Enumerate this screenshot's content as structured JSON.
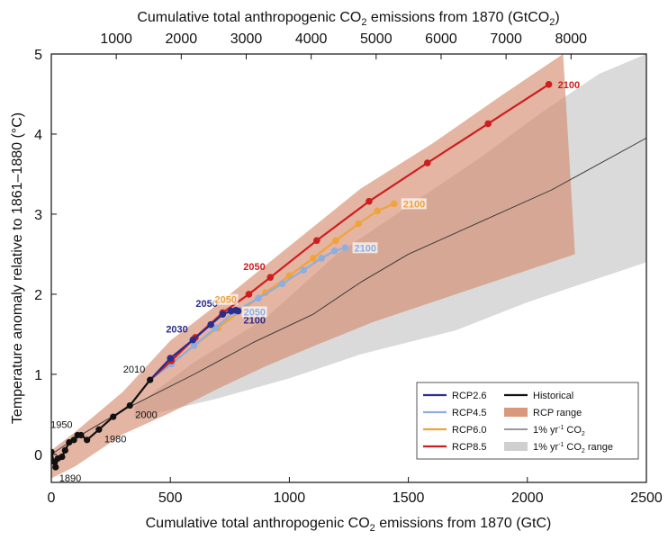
{
  "chart_data": {
    "type": "line",
    "title": "",
    "xlabel_parts": [
      "Cumulative total anthropogenic CO",
      "2",
      " emissions from 1870 (GtC)"
    ],
    "x2label_parts": [
      "Cumulative total anthropogenic CO",
      "2",
      " emissions from 1870 (GtCO",
      "2",
      ")"
    ],
    "ylabel": "Temperature anomaly relative to 1861–1880 (°C)",
    "xlim": [
      0,
      2500
    ],
    "ylim": [
      -0.35,
      5
    ],
    "xticks": [
      "0",
      "500",
      "1000",
      "1500",
      "2000",
      "2500"
    ],
    "x2ticks": [
      "1000",
      "2000",
      "3000",
      "4000",
      "5000",
      "6000",
      "7000",
      "8000"
    ],
    "yticks": [
      "0",
      "1",
      "2",
      "3",
      "4",
      "5"
    ],
    "grid": false,
    "legend_position": "bottom-right",
    "legend": {
      "col1": [
        {
          "label": "RCP2.6",
          "color": "#2b2c8c"
        },
        {
          "label": "RCP4.5",
          "color": "#8eaee0"
        },
        {
          "label": "RCP6.0",
          "color": "#f0a33a"
        },
        {
          "label": "RCP8.5",
          "color": "#cc1f1f"
        }
      ],
      "col2": [
        {
          "label": "Historical",
          "color": "#111111",
          "kind": "line"
        },
        {
          "label": "RCP range",
          "color": "#d9977c",
          "kind": "patch"
        },
        {
          "label_parts": [
            "1% yr",
            "-1",
            " CO",
            "2"
          ],
          "color": "#333333",
          "kind": "thinline"
        },
        {
          "label_parts": [
            "1% yr",
            "-1",
            " CO",
            "2",
            " range"
          ],
          "color": "#cfcfcf",
          "kind": "patch"
        }
      ]
    },
    "series": [
      {
        "name": "Historical",
        "color": "#111111",
        "points": [
          [
            0,
            0.03
          ],
          [
            10,
            -0.09
          ],
          [
            18,
            -0.16
          ],
          [
            28,
            -0.05
          ],
          [
            45,
            -0.03
          ],
          [
            58,
            0.05
          ],
          [
            75,
            0.15
          ],
          [
            95,
            0.18
          ],
          [
            110,
            0.24
          ],
          [
            125,
            0.24
          ],
          [
            150,
            0.18
          ],
          [
            200,
            0.31
          ],
          [
            260,
            0.47
          ],
          [
            330,
            0.61
          ],
          [
            415,
            0.93
          ]
        ]
      },
      {
        "name": "RCP2.6",
        "color": "#2b2c8c",
        "points": [
          [
            415,
            0.93
          ],
          [
            500,
            1.2
          ],
          [
            595,
            1.43
          ],
          [
            670,
            1.62
          ],
          [
            720,
            1.75
          ],
          [
            755,
            1.79
          ],
          [
            775,
            1.8
          ],
          [
            785,
            1.79
          ]
        ]
      },
      {
        "name": "RCP4.5",
        "color": "#8eaee0",
        "points": [
          [
            415,
            0.93
          ],
          [
            505,
            1.13
          ],
          [
            600,
            1.36
          ],
          [
            690,
            1.58
          ],
          [
            770,
            1.78
          ],
          [
            870,
            1.95
          ],
          [
            970,
            2.13
          ],
          [
            1060,
            2.3
          ],
          [
            1135,
            2.45
          ],
          [
            1190,
            2.54
          ],
          [
            1235,
            2.58
          ]
        ]
      },
      {
        "name": "RCP6.0",
        "color": "#f0a33a",
        "points": [
          [
            415,
            0.93
          ],
          [
            500,
            1.13
          ],
          [
            600,
            1.36
          ],
          [
            700,
            1.58
          ],
          [
            800,
            1.8
          ],
          [
            900,
            2.02
          ],
          [
            1000,
            2.23
          ],
          [
            1100,
            2.45
          ],
          [
            1195,
            2.67
          ],
          [
            1290,
            2.88
          ],
          [
            1370,
            3.04
          ],
          [
            1440,
            3.13
          ]
        ]
      },
      {
        "name": "RCP8.5",
        "color": "#cc1f1f",
        "points": [
          [
            415,
            0.93
          ],
          [
            505,
            1.17
          ],
          [
            605,
            1.46
          ],
          [
            720,
            1.77
          ],
          [
            830,
            2.0
          ],
          [
            920,
            2.21
          ],
          [
            1115,
            2.67
          ],
          [
            1335,
            3.16
          ],
          [
            1580,
            3.64
          ],
          [
            1835,
            4.13
          ],
          [
            2090,
            4.62
          ]
        ]
      },
      {
        "name": "1% yr-1 CO2",
        "color": "#333333",
        "points": [
          [
            0,
            0.0
          ],
          [
            100,
            0.2
          ],
          [
            300,
            0.55
          ],
          [
            600,
            1.0
          ],
          [
            850,
            1.4
          ],
          [
            1100,
            1.75
          ],
          [
            1300,
            2.15
          ],
          [
            1500,
            2.5
          ],
          [
            1800,
            2.9
          ],
          [
            2100,
            3.3
          ],
          [
            2500,
            3.95
          ]
        ]
      }
    ],
    "rcp_range": {
      "upper": [
        [
          0,
          0.05
        ],
        [
          100,
          0.28
        ],
        [
          300,
          0.78
        ],
        [
          500,
          1.42
        ],
        [
          700,
          1.88
        ],
        [
          1000,
          2.6
        ],
        [
          1300,
          3.32
        ],
        [
          1600,
          3.88
        ],
        [
          1900,
          4.5
        ],
        [
          2150,
          5.0
        ]
      ],
      "lower": [
        [
          0,
          -0.3
        ],
        [
          100,
          -0.15
        ],
        [
          300,
          0.25
        ],
        [
          500,
          0.52
        ],
        [
          700,
          0.82
        ],
        [
          900,
          1.1
        ],
        [
          1100,
          1.35
        ],
        [
          1350,
          1.65
        ],
        [
          1700,
          2.0
        ],
        [
          2000,
          2.3
        ],
        [
          2200,
          2.5
        ]
      ]
    },
    "co2_range": {
      "upper": [
        [
          350,
          0.6
        ],
        [
          600,
          1.15
        ],
        [
          900,
          1.7
        ],
        [
          1200,
          2.5
        ],
        [
          1500,
          3.1
        ],
        [
          1800,
          3.7
        ],
        [
          2050,
          4.25
        ],
        [
          2300,
          4.75
        ],
        [
          2500,
          5.0
        ]
      ],
      "lower": [
        [
          350,
          0.45
        ],
        [
          700,
          0.7
        ],
        [
          1000,
          0.95
        ],
        [
          1300,
          1.25
        ],
        [
          1700,
          1.55
        ],
        [
          2000,
          1.9
        ],
        [
          2300,
          2.2
        ],
        [
          2500,
          2.4
        ]
      ]
    },
    "year_labels": [
      {
        "text": "1890",
        "x": 18,
        "y": -0.16,
        "anchor": "bl",
        "color": "#111111"
      },
      {
        "text": "1950",
        "x": 110,
        "y": 0.24,
        "anchor": "tl",
        "color": "#111111"
      },
      {
        "text": "1980",
        "x": 200,
        "y": 0.31,
        "anchor": "br",
        "color": "#111111"
      },
      {
        "text": "2000",
        "x": 330,
        "y": 0.61,
        "anchor": "br",
        "color": "#111111"
      },
      {
        "text": "2010",
        "x": 415,
        "y": 0.93,
        "anchor": "tl",
        "color": "#111111"
      },
      {
        "text": "2030",
        "x": 595,
        "y": 1.43,
        "anchor": "tl",
        "color": "#2b2c8c"
      },
      {
        "text": "2050",
        "x": 720,
        "y": 1.75,
        "anchor": "tl",
        "color": "#2b2c8c"
      },
      {
        "text": "2100",
        "x": 785,
        "y": 1.79,
        "anchor": "br",
        "color": "#2b2c8c"
      },
      {
        "text": "2050",
        "x": 770,
        "y": 1.78,
        "anchor": "r",
        "color": "#8eaee0"
      },
      {
        "text": "2100",
        "x": 1235,
        "y": 2.58,
        "anchor": "r",
        "color": "#8eaee0"
      },
      {
        "text": "2050",
        "x": 800,
        "y": 1.8,
        "anchor": "tl",
        "color": "#f0a33a"
      },
      {
        "text": "2100",
        "x": 1440,
        "y": 3.13,
        "anchor": "r",
        "color": "#f0a33a"
      },
      {
        "text": "2050",
        "x": 920,
        "y": 2.21,
        "anchor": "tl",
        "color": "#cc1f1f"
      },
      {
        "text": "2100",
        "x": 2090,
        "y": 4.62,
        "anchor": "r",
        "color": "#cc1f1f"
      }
    ]
  }
}
